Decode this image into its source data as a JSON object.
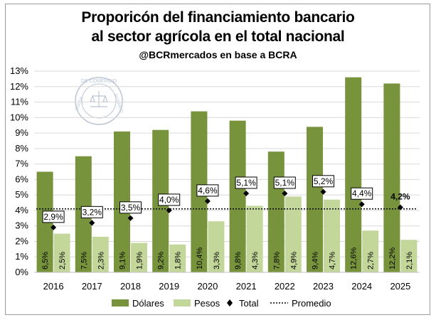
{
  "title_line1": "Proporicón del financiamiento bancario",
  "title_line2": "al sector agrícola en el total nacional",
  "subtitle": "@BCRmercados en base a BCRA",
  "watermark": {
    "text_top": "DE COMERCIO",
    "text_left": "BOLSA",
    "text_right": "ROSARIO"
  },
  "legend": {
    "dolares": "Dólares",
    "pesos": "Pesos",
    "total": "Total",
    "promedio": "Promedio"
  },
  "colors": {
    "dolares": "#77933c",
    "pesos": "#c4d79b",
    "total": "#000000",
    "promedio": "#000000",
    "grid": "#d9d9d9"
  },
  "chart_data": {
    "type": "bar",
    "title": "Proporicón del financiamiento bancario al sector agrícola en el total nacional",
    "subtitle": "@BCRmercados en base a BCRA",
    "categories": [
      "2016",
      "2017",
      "2018",
      "2019",
      "2020",
      "2021",
      "2022",
      "2023",
      "2024",
      "2025"
    ],
    "series": [
      {
        "name": "Dólares",
        "values": [
          6.5,
          7.5,
          9.1,
          9.2,
          10.4,
          9.8,
          7.8,
          9.4,
          12.6,
          12.2
        ],
        "labels": [
          "6,5%",
          "7,5%",
          "9,1%",
          "9,2%",
          "10,4%",
          "9,8%",
          "7,8%",
          "9,4%",
          "12,6%",
          "12,2%"
        ]
      },
      {
        "name": "Pesos",
        "values": [
          2.5,
          2.3,
          1.9,
          1.8,
          3.3,
          4.3,
          4.9,
          4.7,
          2.7,
          2.1
        ],
        "labels": [
          "2,5%",
          "2,3%",
          "1,9%",
          "1,8%",
          "3,3%",
          "4,3%",
          "4,9%",
          "4,7%",
          "2,7%",
          "2,1%"
        ]
      },
      {
        "name": "Total",
        "values": [
          2.9,
          3.2,
          3.5,
          4.0,
          4.6,
          5.1,
          5.1,
          5.2,
          4.4,
          4.2
        ],
        "labels": [
          "2,9%",
          "3,2%",
          "3,5%",
          "4,0%",
          "4,6%",
          "5,1%",
          "5,1%",
          "5,2%",
          "4,4%",
          "4,2%"
        ]
      },
      {
        "name": "Promedio",
        "value": 4.1
      }
    ],
    "ylim": [
      0,
      13
    ],
    "yticks": [
      "0%",
      "1%",
      "2%",
      "3%",
      "4%",
      "5%",
      "6%",
      "7%",
      "8%",
      "9%",
      "10%",
      "11%",
      "12%",
      "13%"
    ],
    "grid": true,
    "legend_position": "bottom"
  }
}
